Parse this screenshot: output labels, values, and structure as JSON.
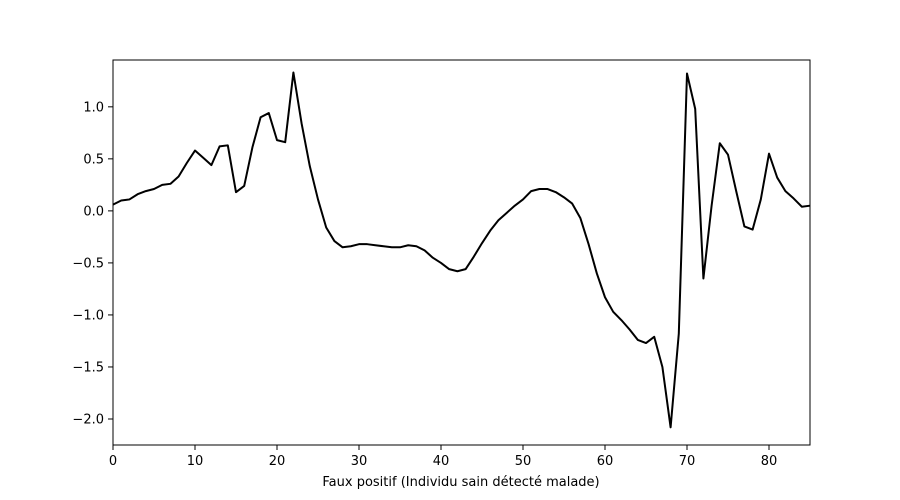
{
  "chart_data": {
    "type": "line",
    "title": "",
    "xlabel": "Faux positif (Individu sain détecté malade)",
    "ylabel": "",
    "xlim": [
      0,
      85
    ],
    "ylim": [
      -2.25,
      1.45
    ],
    "grid": false,
    "legend": "none",
    "x_ticks": [
      0,
      10,
      20,
      30,
      40,
      50,
      60,
      70,
      80
    ],
    "y_ticks": [
      -2.0,
      -1.5,
      -1.0,
      -0.5,
      0.0,
      0.5,
      1.0
    ],
    "x_tick_labels": [
      "0",
      "10",
      "20",
      "30",
      "40",
      "50",
      "60",
      "70",
      "80"
    ],
    "y_tick_labels": [
      "−2.0",
      "−1.5",
      "−1.0",
      "−0.5",
      "0.0",
      "0.5",
      "1.0"
    ],
    "line_color": "#000000",
    "series": [
      {
        "x": [
          0,
          1,
          2,
          3,
          4,
          5,
          6,
          7,
          8,
          9,
          10,
          11,
          12,
          13,
          14,
          15,
          16,
          17,
          18,
          19,
          20,
          21,
          22,
          23,
          24,
          25,
          26,
          27,
          28,
          29,
          30,
          31,
          32,
          33,
          34,
          35,
          36,
          37,
          38,
          39,
          40,
          41,
          42,
          43,
          44,
          45,
          46,
          47,
          48,
          49,
          50,
          51,
          52,
          53,
          54,
          55,
          56,
          57,
          58,
          59,
          60,
          61,
          62,
          63,
          64,
          65,
          66,
          67,
          68,
          69,
          70,
          71,
          72,
          73,
          74,
          75,
          76,
          77,
          78,
          79,
          80,
          81,
          82,
          83,
          84,
          85
        ],
        "values": [
          0.06,
          0.1,
          0.11,
          0.16,
          0.19,
          0.21,
          0.25,
          0.26,
          0.33,
          0.46,
          0.58,
          0.51,
          0.44,
          0.62,
          0.63,
          0.18,
          0.24,
          0.61,
          0.9,
          0.94,
          0.68,
          0.66,
          1.33,
          0.84,
          0.43,
          0.11,
          -0.16,
          -0.29,
          -0.35,
          -0.34,
          -0.32,
          -0.32,
          -0.33,
          -0.34,
          -0.35,
          -0.35,
          -0.33,
          -0.34,
          -0.38,
          -0.45,
          -0.5,
          -0.56,
          -0.58,
          -0.56,
          -0.44,
          -0.31,
          -0.19,
          -0.09,
          -0.02,
          0.05,
          0.11,
          0.19,
          0.21,
          0.21,
          0.18,
          0.13,
          0.07,
          -0.07,
          -0.32,
          -0.6,
          -0.83,
          -0.97,
          -1.05,
          -1.14,
          -1.24,
          -1.27,
          -1.21,
          -1.5,
          -2.08,
          -1.18,
          1.32,
          0.98,
          -0.65,
          0.05,
          0.65,
          0.54,
          0.19,
          -0.15,
          -0.18,
          0.11,
          0.55,
          0.32,
          0.19,
          0.12,
          0.04,
          0.05
        ]
      }
    ]
  }
}
